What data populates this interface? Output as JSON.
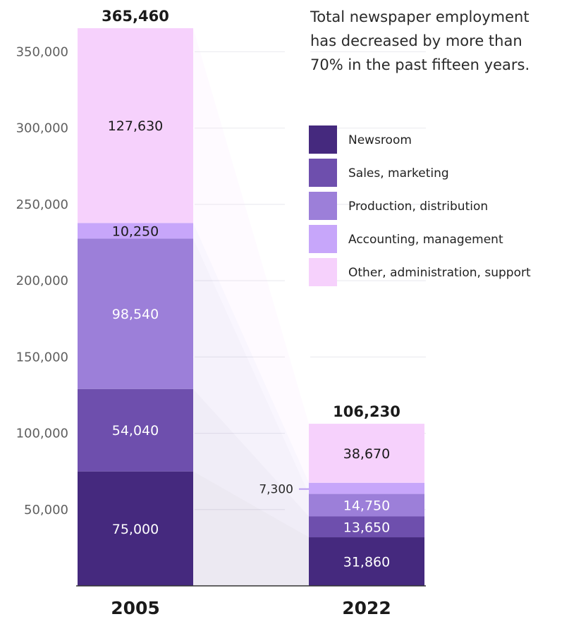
{
  "chart_data": {
    "type": "bar",
    "subtype": "stacked",
    "title": "",
    "subtitle": "Total newspaper employment has decreased by more than 70% in the past fifteen years.",
    "subtitle_lines": [
      "Total newspaper employment",
      "has decreased by more than",
      "70% in the past fifteen years."
    ],
    "xlabel": "",
    "ylabel": "",
    "ylim": [
      0,
      365460
    ],
    "yticks": [
      50000,
      100000,
      150000,
      200000,
      250000,
      300000,
      350000
    ],
    "ytick_labels": [
      "50,000",
      "100,000",
      "150,000",
      "200,000",
      "250,000",
      "300,000",
      "350,000"
    ],
    "grid": true,
    "legend_position": "right",
    "categories": [
      "2005",
      "2022"
    ],
    "totals": [
      365460,
      106230
    ],
    "total_labels": [
      "365,460",
      "106,230"
    ],
    "series": [
      {
        "name": "Newsroom",
        "color": "#45297e",
        "label_color": "#ffffff",
        "values": [
          75000,
          31860
        ],
        "labels": [
          "75,000",
          "31,860"
        ]
      },
      {
        "name": "Sales, marketing",
        "color": "#6e4fad",
        "label_color": "#ffffff",
        "values": [
          54040,
          13650
        ],
        "labels": [
          "54,040",
          "13,650"
        ]
      },
      {
        "name": "Production, distribution",
        "color": "#9c7fd9",
        "label_color": "#ffffff",
        "values": [
          98540,
          14750
        ],
        "labels": [
          "98,540",
          "14,750"
        ]
      },
      {
        "name": "Accounting, management",
        "color": "#c7a6fa",
        "label_color": "#1a1a1a",
        "values": [
          10250,
          7300
        ],
        "labels": [
          "10,250",
          "7,300"
        ]
      },
      {
        "name": "Other, administration, support",
        "color": "#f6d1fc",
        "label_color": "#1a1a1a",
        "values": [
          127630,
          38670
        ],
        "labels": [
          "127,630",
          "38,670"
        ]
      }
    ]
  }
}
